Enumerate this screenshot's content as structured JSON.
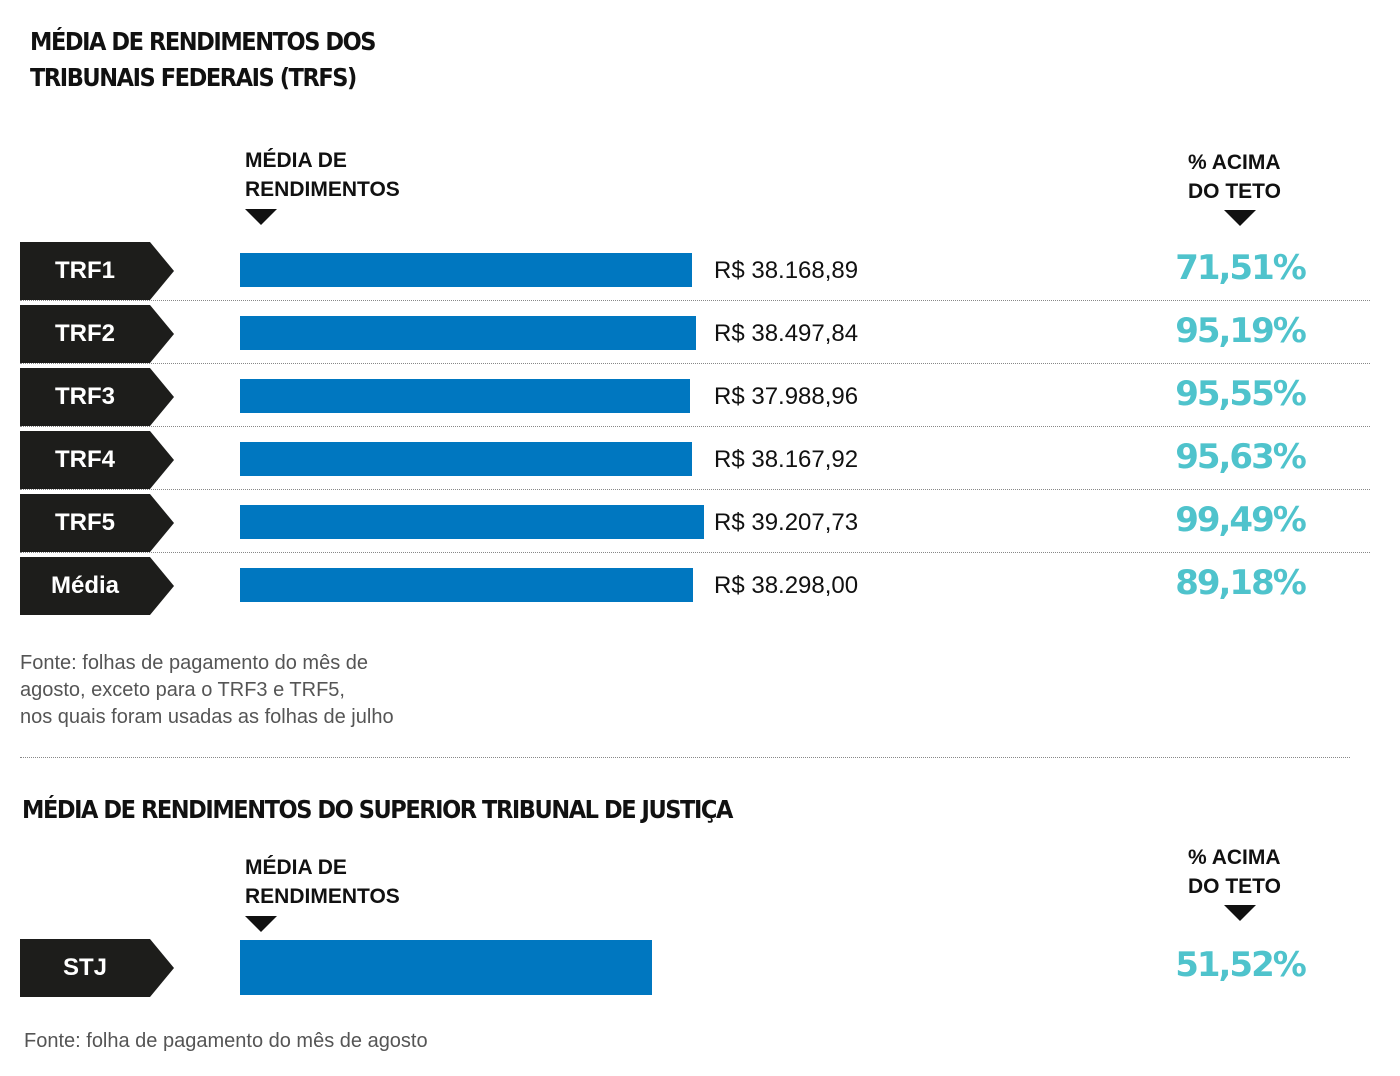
{
  "section1": {
    "title_line1": "MÉDIA DE RENDIMENTOS DOS",
    "title_line2": "TRIBUNAIS FEDERAIS (TRFS)",
    "col_media_line1": "MÉDIA DE",
    "col_media_line2": "RENDIMENTOS",
    "col_pct_line1": "% ACIMA",
    "col_pct_line2": "DO TETO",
    "source_line1": "Fonte: folhas de pagamento do mês de",
    "source_line2": "agosto, exceto para o TRF3 e TRF5,",
    "source_line3": "nos quais foram usadas as folhas de julho"
  },
  "section2": {
    "title": "MÉDIA DE RENDIMENTOS DO SUPERIOR TRIBUNAL DE JUSTIÇA",
    "col_media_line1": "MÉDIA DE",
    "col_media_line2": "RENDIMENTOS",
    "col_pct_line1": "% ACIMA",
    "col_pct_line2": "DO TETO",
    "source": "Fonte: folha de pagamento do mês de agosto"
  },
  "colors": {
    "bar": "#0077c0",
    "label_bg": "#1d1d1b",
    "pct_text": "#4fc3cc"
  },
  "chart_data": [
    {
      "type": "bar",
      "orientation": "horizontal",
      "title": "MÉDIA DE RENDIMENTOS DOS TRIBUNAIS FEDERAIS (TRFS)",
      "categories": [
        "TRF1",
        "TRF2",
        "TRF3",
        "TRF4",
        "TRF5",
        "Média"
      ],
      "values": [
        38168.89,
        38497.84,
        37988.96,
        38167.92,
        39207.73,
        38298.0
      ],
      "value_labels": [
        "R$ 38.168,89",
        "R$ 38.497,84",
        "R$ 37.988,96",
        "R$ 38.167,92",
        "R$ 39.207,73",
        "R$ 38.298,00"
      ],
      "pct_above_ceiling": [
        "71,51%",
        "95,19%",
        "95,55%",
        "95,63%",
        "99,49%",
        "89,18%"
      ]
    },
    {
      "type": "bar",
      "orientation": "horizontal",
      "title": "MÉDIA DE RENDIMENTOS DO SUPERIOR TRIBUNAL DE JUSTIÇA",
      "categories": [
        "STJ"
      ],
      "values": [
        34800
      ],
      "value_labels": [],
      "pct_above_ceiling": [
        "51,52%"
      ]
    }
  ]
}
